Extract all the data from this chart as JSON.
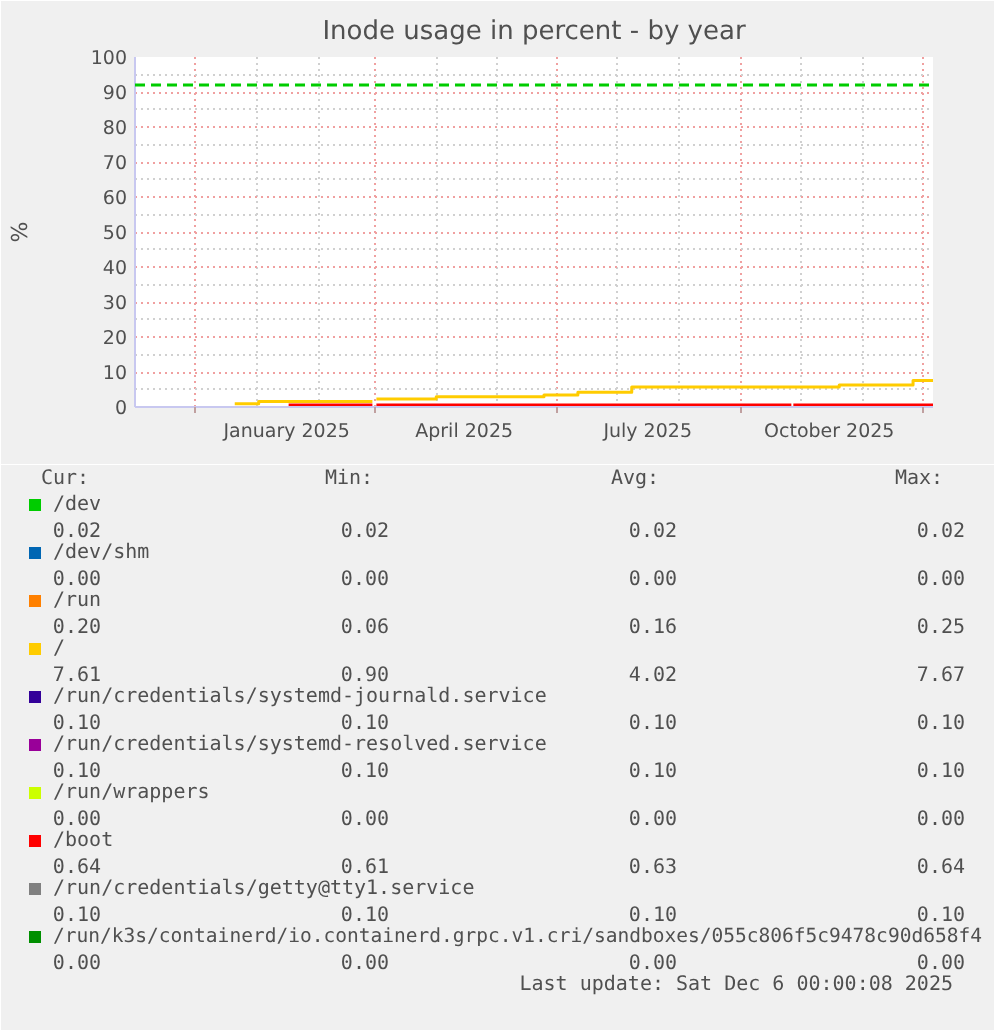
{
  "chart_data": {
    "type": "step",
    "title": "Inode usage in percent - by year",
    "ylabel": "%",
    "x": [
      "2024-12-21",
      "2025-01-02",
      "2025-01-17",
      "2025-02-28",
      "2025-03-02",
      "2025-04-01",
      "2025-05-25",
      "2025-06-11",
      "2025-07-08",
      "2025-09-26",
      "2025-09-27",
      "2025-10-20",
      "2025-11-26",
      "2025-12-06"
    ],
    "series": [
      {
        "name": "/dev",
        "color": "#00cc00",
        "values": [
          null,
          null,
          null,
          null,
          null,
          null,
          null,
          null,
          null,
          null,
          null,
          null,
          null,
          null
        ]
      },
      {
        "name": "/dev/shm",
        "color": "#0066b3",
        "values": [
          null,
          null,
          null,
          null,
          null,
          null,
          null,
          null,
          null,
          null,
          null,
          null,
          null,
          null
        ]
      },
      {
        "name": "/run",
        "color": "#ff8000",
        "values": [
          null,
          null,
          null,
          null,
          null,
          null,
          null,
          null,
          null,
          null,
          null,
          null,
          null,
          null
        ]
      },
      {
        "name": "/",
        "color": "#ffcc00",
        "values": [
          0.9,
          1.6,
          1.6,
          null,
          2.3,
          2.9,
          3.4,
          4.2,
          5.7,
          5.7,
          5.7,
          6.3,
          7.6,
          7.6
        ]
      },
      {
        "name": "/run/credentials/systemd-journald.service",
        "color": "#330099",
        "values": [
          null,
          null,
          null,
          null,
          null,
          null,
          null,
          null,
          null,
          null,
          null,
          null,
          null,
          null
        ]
      },
      {
        "name": "/run/credentials/systemd-resolved.service",
        "color": "#990099",
        "values": [
          null,
          null,
          null,
          null,
          null,
          null,
          null,
          null,
          null,
          null,
          null,
          null,
          null,
          null
        ]
      },
      {
        "name": "/run/wrappers",
        "color": "#ccff00",
        "values": [
          null,
          null,
          null,
          null,
          null,
          null,
          null,
          null,
          null,
          null,
          null,
          null,
          null,
          null
        ]
      },
      {
        "name": "/boot",
        "color": "#ff0000",
        "values": [
          null,
          null,
          0.6,
          null,
          0.6,
          0.6,
          0.6,
          0.6,
          0.6,
          null,
          0.6,
          0.6,
          0.6,
          0.6
        ]
      },
      {
        "name": "/run/credentials/getty@tty1.service",
        "color": "#808080",
        "values": [
          null,
          null,
          null,
          null,
          null,
          null,
          null,
          null,
          null,
          null,
          null,
          null,
          null,
          null
        ]
      },
      {
        "name": "/run/k3s/containerd/io.containerd.grpc.v1.cri/sandboxes/055c806f5c9478c90d658f4",
        "color": "#008f00",
        "values": [
          null,
          null,
          null,
          null,
          null,
          null,
          null,
          null,
          null,
          null,
          null,
          null,
          null,
          null
        ]
      }
    ],
    "xlim": [
      "2024-11-01",
      "2025-12-06"
    ],
    "xticks": [
      {
        "value": "2024-12-01",
        "label": null
      },
      {
        "value": "2025-01-16",
        "label": "January 2025"
      },
      {
        "value": "2025-03-01",
        "label": null
      },
      {
        "value": "2025-04-15",
        "label": "April 2025"
      },
      {
        "value": "2025-06-01",
        "label": null
      },
      {
        "value": "2025-07-16",
        "label": "July 2025"
      },
      {
        "value": "2025-09-01",
        "label": null
      },
      {
        "value": "2025-10-15",
        "label": "October 2025"
      },
      {
        "value": "2025-12-01",
        "label": null
      }
    ],
    "ylim": [
      0,
      100
    ],
    "yticks": [
      0,
      10,
      20,
      30,
      40,
      50,
      60,
      70,
      80,
      90,
      100
    ],
    "grid": true,
    "legend": "bottom",
    "ref_lines": [
      {
        "axis": "y",
        "value": 92,
        "color": "#00cc00",
        "line_style": "dashed"
      }
    ],
    "annotations": [
      "Cur:",
      "Min:",
      "Avg:",
      "Max:",
      "0.02",
      "0.02",
      "0.02",
      "0.02",
      "0.00",
      "0.00",
      "0.00",
      "0.00",
      "0.20",
      "0.06",
      "0.16",
      "0.25",
      "7.61",
      "0.90",
      "4.02",
      "7.67",
      "0.10",
      "0.10",
      "0.10",
      "0.10",
      "0.10",
      "0.10",
      "0.10",
      "0.10",
      "0.00",
      "0.00",
      "0.00",
      "0.00",
      "0.64",
      "0.61",
      "0.63",
      "0.64",
      "0.10",
      "0.10",
      "0.10",
      "0.10",
      "0.00",
      "0.00",
      "0.00",
      "0.00",
      "Last update: Sat Dec  6 00:00:08 2025"
    ]
  }
}
